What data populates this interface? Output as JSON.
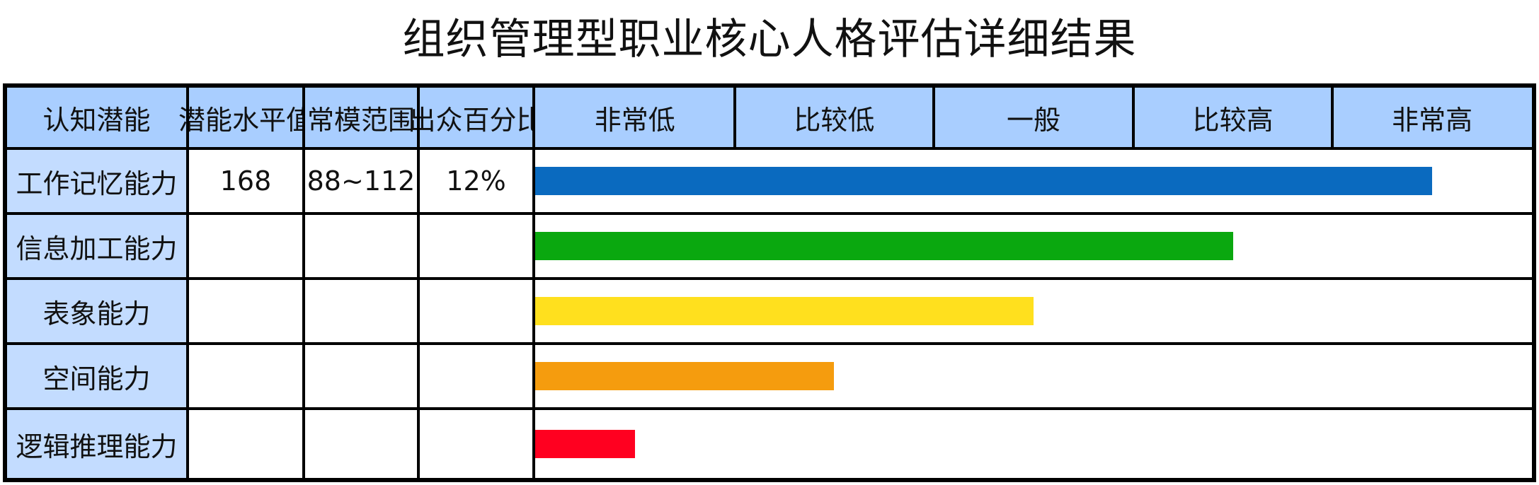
{
  "title": "组织管理型职业核心人格评估详细结果",
  "chart_data": {
    "type": "bar",
    "orientation": "horizontal",
    "columns": [
      "认知潜能",
      "潜能水平值",
      "常模范围",
      "出众百分比"
    ],
    "scale_labels": [
      "非常低",
      "比较低",
      "一般",
      "比较高",
      "非常高"
    ],
    "xlim": [
      0,
      5
    ],
    "rows": [
      {
        "name": "工作记忆能力",
        "level": "168",
        "norm": "88~112",
        "percent": "12%",
        "value": 4.5,
        "color": "#0a6abf"
      },
      {
        "name": "信息加工能力",
        "level": "",
        "norm": "",
        "percent": "",
        "value": 3.5,
        "color": "#0aa80f"
      },
      {
        "name": "表象能力",
        "level": "",
        "norm": "",
        "percent": "",
        "value": 2.5,
        "color": "#ffe01e"
      },
      {
        "name": "空间能力",
        "level": "",
        "norm": "",
        "percent": "",
        "value": 1.5,
        "color": "#f59c0e"
      },
      {
        "name": "逻辑推理能力",
        "level": "",
        "norm": "",
        "percent": "",
        "value": 0.5,
        "color": "#ff0020"
      }
    ]
  }
}
